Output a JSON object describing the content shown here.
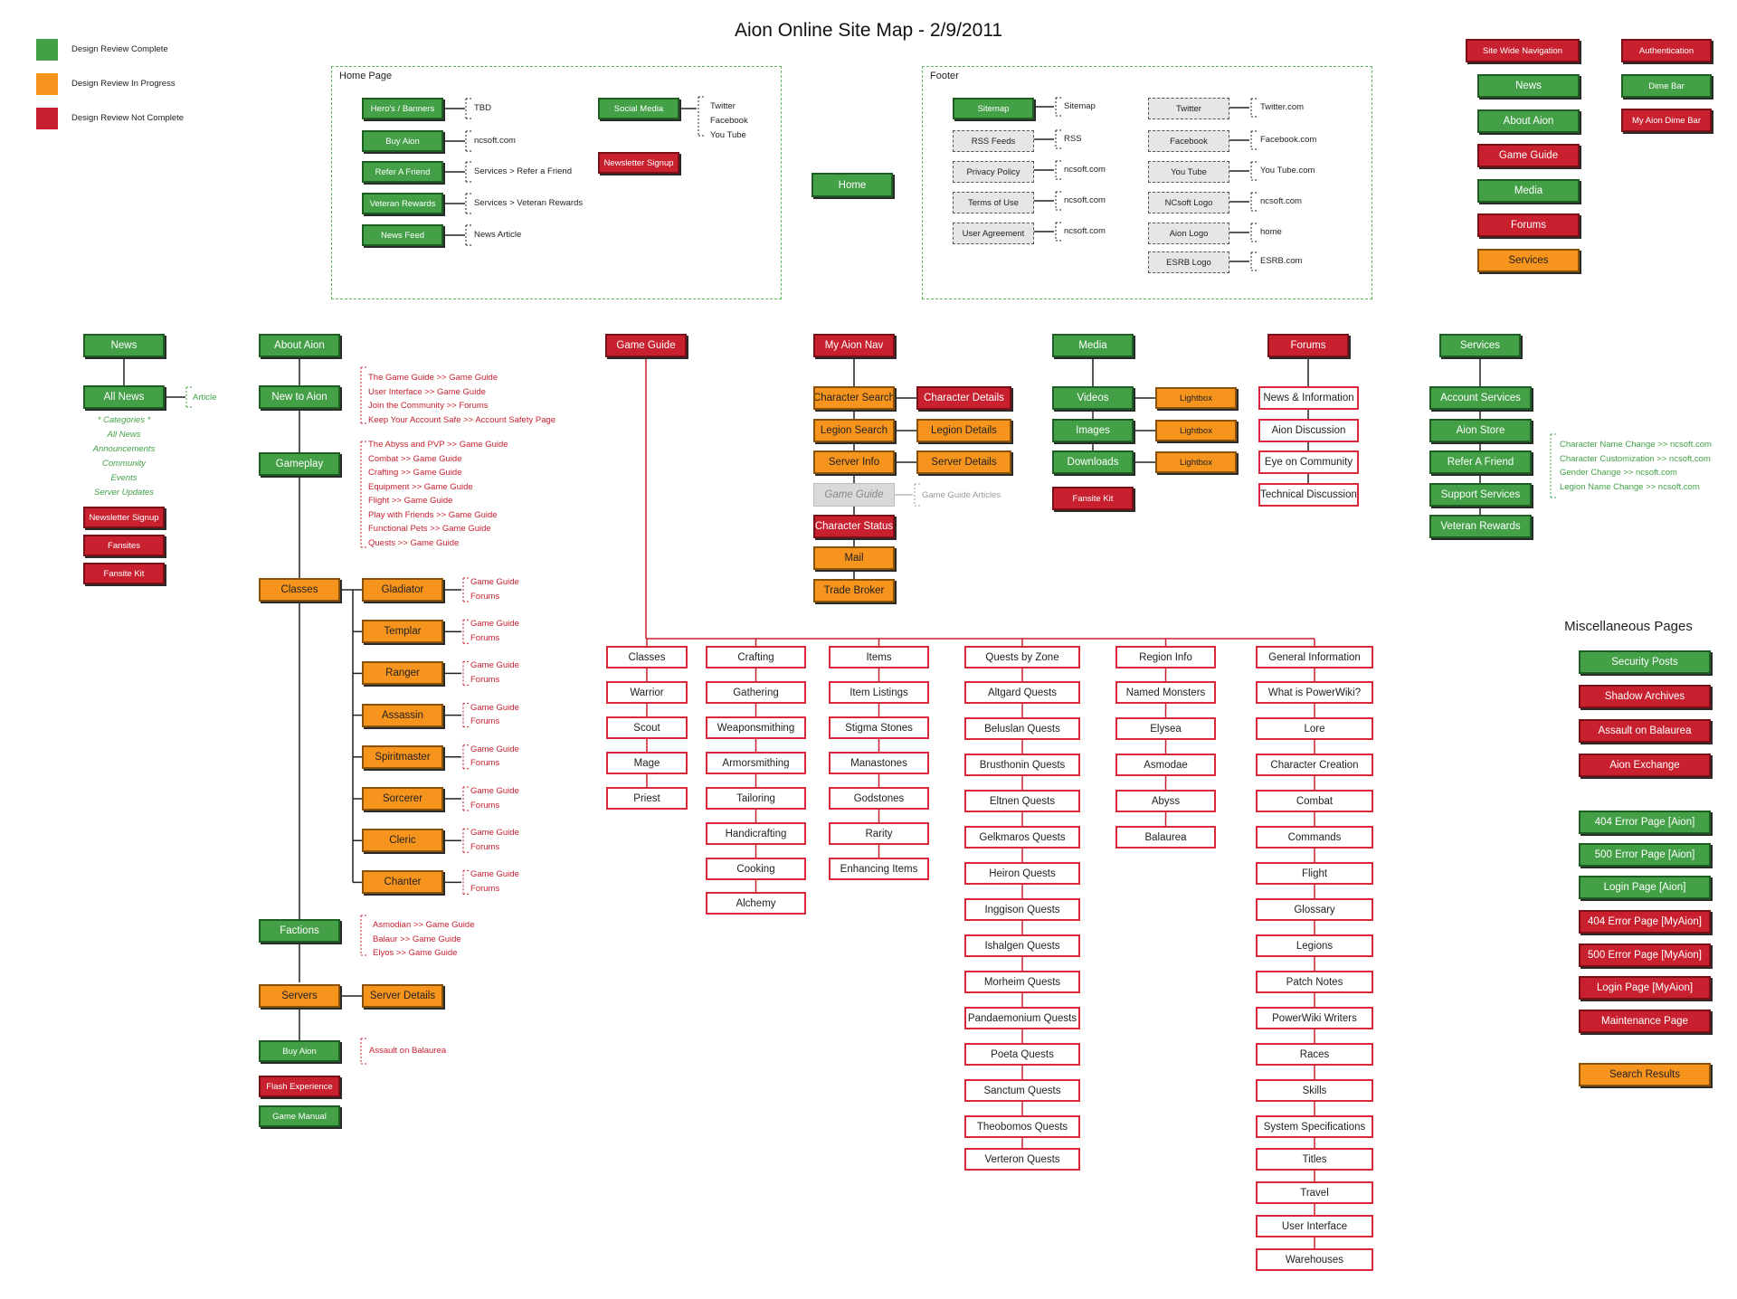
{
  "title": "Aion Online Site Map - 2/9/2011",
  "legend": [
    {
      "label": "Design Review Complete",
      "color": "#43a047"
    },
    {
      "label": "Design Review In Progress",
      "color": "#f7941d"
    },
    {
      "label": "Design Review Not Complete",
      "color": "#c8202f"
    }
  ],
  "regions": {
    "home_page": "Home Page",
    "footer": "Footer"
  },
  "home_page": {
    "hero": "Hero's / Banners",
    "hero_note": "TBD",
    "buy": "Buy Aion",
    "buy_note": "ncsoft.com",
    "refer": "Refer A Friend",
    "refer_note": "Services > Refer a Friend",
    "veteran": "Veteran Rewards",
    "veteran_note": "Services > Veteran Rewards",
    "newsfeed": "News Feed",
    "newsfeed_note": "News Article",
    "social": "Social Media",
    "social_notes": [
      "Twitter",
      "Facebook",
      "You Tube"
    ],
    "newsletter": "Newsletter Signup"
  },
  "home_button": "Home",
  "footer": {
    "left": [
      {
        "label": "Sitemap",
        "note": "Sitemap"
      },
      {
        "label": "RSS Feeds",
        "note": "RSS"
      },
      {
        "label": "Privacy Policy",
        "note": "ncsoft.com"
      },
      {
        "label": "Terms of Use",
        "note": "ncsoft.com"
      },
      {
        "label": "User Agreement",
        "note": "ncsoft.com"
      }
    ],
    "right": [
      {
        "label": "Twitter",
        "note": "Twitter.com"
      },
      {
        "label": "Facebook",
        "note": "Facebook.com"
      },
      {
        "label": "You Tube",
        "note": "You Tube.com"
      },
      {
        "label": "NCsoft Logo",
        "note": "ncsoft.com"
      },
      {
        "label": "Aion Logo",
        "note": "home"
      },
      {
        "label": "ESRB Logo",
        "note": "ESRB.com"
      }
    ]
  },
  "site_nav": {
    "title": "Site Wide Navigation",
    "items": [
      "News",
      "About Aion",
      "Game Guide",
      "Media",
      "Forums",
      "Services"
    ]
  },
  "top_right": {
    "auth": "Authentication",
    "dime": "Dime Bar",
    "mydime": "My Aion Dime Bar"
  },
  "news": {
    "title": "News",
    "all": "All News",
    "article": "Article",
    "categories": [
      "* Categories *",
      "All News",
      "Announcements",
      "Community",
      "Events",
      "Server Updates"
    ],
    "extras": [
      "Newsletter Signup",
      "Fansites",
      "Fansite Kit"
    ]
  },
  "about": {
    "title": "About Aion",
    "new": "New to Aion",
    "new_links": [
      "The Game Guide >> Game Guide",
      "User Interface >> Game Guide",
      "Join the Community >> Forums",
      "Keep Your Account Safe >>  Account Safety Page"
    ],
    "gameplay": "Gameplay",
    "gameplay_links": [
      "The Abyss and PVP >> Game Guide",
      "Combat >> Game Guide",
      "Crafting >> Game Guide",
      "Equipment >> Game Guide",
      "Flight >> Game Guide",
      "Play with Friends >> Game Guide",
      "Functional Pets >> Game Guide",
      "Quests >> Game Guide"
    ],
    "classes": "Classes",
    "class_list": [
      "Gladiator",
      "Templar",
      "Ranger",
      "Assassin",
      "Spiritmaster",
      "Sorcerer",
      "Cleric",
      "Chanter"
    ],
    "class_links": [
      "Game Guide",
      "Forums"
    ],
    "factions": "Factions",
    "faction_links": [
      "Asmodian >> Game Guide",
      "Balaur >> Game Guide",
      "Elyos >> Game Guide"
    ],
    "servers": "Servers",
    "server_details": "Server Details",
    "buy": "Buy Aion",
    "buy_link": "Assault on Balaurea",
    "flash": "Flash Experience",
    "manual": "Game Manual"
  },
  "game_guide": {
    "title": "Game Guide",
    "columns": [
      [
        "Classes",
        "Warrior",
        "Scout",
        "Mage",
        "Priest"
      ],
      [
        "Crafting",
        "Gathering",
        "Weaponsmithing",
        "Armorsmithing",
        "Tailoring",
        "Handicrafting",
        "Cooking",
        "Alchemy"
      ],
      [
        "Items",
        "Item Listings",
        "Stigma Stones",
        "Manastones",
        "Godstones",
        "Rarity",
        "Enhancing Items"
      ],
      [
        "Quests by Zone",
        "Altgard Quests",
        "Beluslan Quests",
        "Brusthonin Quests",
        "Eltnen Quests",
        "Gelkmaros Quests",
        "Heiron Quests",
        "Inggison Quests",
        "Ishalgen Quests",
        "Morheim Quests",
        "Pandaemonium Quests",
        "Poeta Quests",
        "Sanctum Quests",
        "Theobomos Quests",
        "Verteron Quests"
      ],
      [
        "Region Info",
        "Named Monsters",
        "Elysea",
        "Asmodae",
        "Abyss",
        "Balaurea"
      ],
      [
        "General Information",
        "What is PowerWiki?",
        "Lore",
        "Character Creation",
        "Combat",
        "Commands",
        "Flight",
        "Glossary",
        "Legions",
        "Patch Notes",
        "PowerWiki Writers",
        "Races",
        "Skills",
        "System Specifications",
        "Titles",
        "Travel",
        "User Interface",
        "Warehouses"
      ]
    ]
  },
  "myaion": {
    "title": "My Aion Nav",
    "char_search": "Character Search",
    "char_details": "Character Details",
    "legion_search": "Legion Search",
    "legion_details": "Legion Details",
    "server_info": "Server Info",
    "server_details": "Server Details",
    "game_guide": "Game Guide",
    "game_guide_articles": "Game Guide Articles",
    "char_status": "Character Status",
    "mail": "Mail",
    "trade": "Trade Broker"
  },
  "media": {
    "title": "Media",
    "videos": "Videos",
    "images": "Images",
    "downloads": "Downloads",
    "lightbox": "Lightbox",
    "fansite_kit": "Fansite Kit"
  },
  "forums": {
    "title": "Forums",
    "items": [
      "News & Information",
      "Aion Discussion",
      "Eye on Community",
      "Technical Discussion"
    ]
  },
  "services": {
    "title": "Services",
    "items": [
      "Account Services",
      "Aion Store",
      "Refer A Friend",
      "Support Services",
      "Veteran Rewards"
    ],
    "links": [
      "Character Name Change >> ncsoft.com",
      "Character Customization >> ncsoft.com",
      "Gender Change >> ncsoft.com",
      "Legion Name Change >> ncsoft.com"
    ]
  },
  "misc": {
    "title": "Miscellaneous Pages",
    "items": [
      {
        "label": "Security Posts",
        "status": "green"
      },
      {
        "label": "Shadow Archives",
        "status": "red"
      },
      {
        "label": "Assault on Balaurea",
        "status": "red"
      },
      {
        "label": "Aion Exchange",
        "status": "red"
      },
      {
        "label": "404 Error Page [Aion]",
        "status": "green"
      },
      {
        "label": "500 Error Page [Aion]",
        "status": "green"
      },
      {
        "label": "Login Page [Aion]",
        "status": "green"
      },
      {
        "label": "404 Error Page [MyAion]",
        "status": "red"
      },
      {
        "label": "500 Error Page [MyAion]",
        "status": "red"
      },
      {
        "label": "Login Page [MyAion]",
        "status": "red"
      },
      {
        "label": "Maintenance Page",
        "status": "red"
      },
      {
        "label": "Search Results",
        "status": "orange"
      }
    ]
  }
}
